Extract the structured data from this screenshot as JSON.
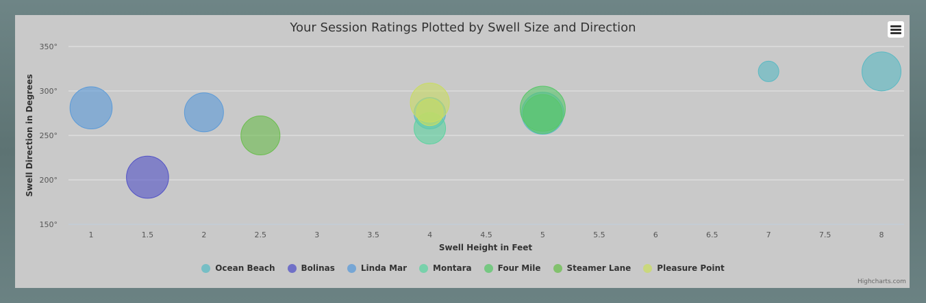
{
  "chart_data": {
    "type": "scatter",
    "title": "Your Session Ratings Plotted by Swell Size and Direction",
    "xlabel": "Swell Height in Feet",
    "ylabel": "Swell Direction in Degrees",
    "xlim": [
      0.8,
      8.2
    ],
    "ylim": [
      150,
      350
    ],
    "x_ticks": [
      1,
      1.5,
      2,
      2.5,
      3,
      3.5,
      4,
      4.5,
      5,
      5.5,
      6,
      6.5,
      7,
      7.5,
      8
    ],
    "x_tick_labels": [
      "1",
      "1.5",
      "2",
      "2.5",
      "3",
      "3.5",
      "4",
      "4.5",
      "5",
      "5.5",
      "6",
      "6.5",
      "7",
      "7.5",
      "8"
    ],
    "y_ticks": [
      150,
      200,
      250,
      300,
      350
    ],
    "y_tick_labels": [
      "150°",
      "200°",
      "250°",
      "300°",
      "350°"
    ],
    "grid": true,
    "legend_position": "bottom",
    "series": [
      {
        "name": "Ocean Beach",
        "color": "#5ab9c3",
        "points": [
          {
            "x": 4,
            "y": 275,
            "z": 3
          },
          {
            "x": 5,
            "y": 275,
            "z": 6
          },
          {
            "x": 7,
            "y": 322,
            "z": 1
          },
          {
            "x": 8,
            "y": 322,
            "z": 5
          }
        ]
      },
      {
        "name": "Bolinas",
        "color": "#5252c6",
        "points": [
          {
            "x": 1.5,
            "y": 203,
            "z": 6
          }
        ]
      },
      {
        "name": "Linda Mar",
        "color": "#5a9ad8",
        "points": [
          {
            "x": 1,
            "y": 281,
            "z": 6
          },
          {
            "x": 2,
            "y": 276,
            "z": 5
          }
        ]
      },
      {
        "name": "Montara",
        "color": "#5cd3a0",
        "points": [
          {
            "x": 4,
            "y": 258,
            "z": 3
          }
        ]
      },
      {
        "name": "Four Mile",
        "color": "#59c76a",
        "points": [
          {
            "x": 5,
            "y": 280,
            "z": 7
          },
          {
            "x": 5,
            "y": 274,
            "z": 5
          }
        ]
      },
      {
        "name": "Steamer Lane",
        "color": "#6abd4d",
        "points": [
          {
            "x": 2.5,
            "y": 250,
            "z": 5
          }
        ]
      },
      {
        "name": "Pleasure Point",
        "color": "#c9dc63",
        "points": [
          {
            "x": 4,
            "y": 287,
            "z": 5
          },
          {
            "x": 4,
            "y": 276,
            "z": 2
          }
        ]
      }
    ]
  },
  "ui": {
    "menu_icon": "hamburger-icon",
    "credit": "Highcharts.com"
  }
}
